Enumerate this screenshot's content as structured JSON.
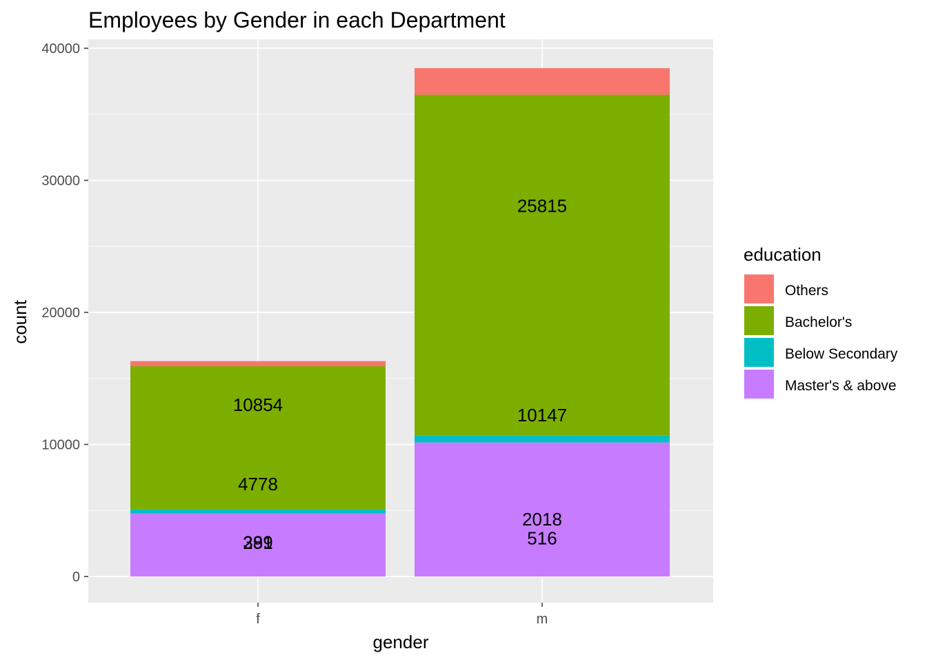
{
  "chart_data": {
    "type": "bar",
    "stacked": true,
    "title": "Employees by Gender in each Department",
    "xlabel": "gender",
    "ylabel": "count",
    "categories": [
      "f",
      "m"
    ],
    "ylim": [
      0,
      40000
    ],
    "yticks": [
      0,
      10000,
      20000,
      30000,
      40000
    ],
    "grid": true,
    "panel_background": "#ebebeb",
    "legend": {
      "title": "education",
      "position": "right",
      "entries": [
        "Others",
        "Bachelor's",
        "Below Secondary",
        "Master's & above"
      ]
    },
    "series": [
      {
        "name": "Master's & above",
        "color": "#C77CFF",
        "values": [
          4778,
          10147
        ]
      },
      {
        "name": "Below Secondary",
        "color": "#00BFC4",
        "values": [
          291,
          516
        ]
      },
      {
        "name": "Bachelor's",
        "color": "#7CAE00",
        "values": [
          10854,
          25815
        ]
      },
      {
        "name": "Others",
        "color": "#F8766D",
        "values": [
          389,
          2018
        ]
      }
    ],
    "data_labels": [
      {
        "category": "f",
        "text": "10854",
        "y": 13012
      },
      {
        "category": "f",
        "text": "4778",
        "y": 6985
      },
      {
        "category": "f",
        "text": "389",
        "y": 2597
      },
      {
        "category": "f",
        "text": "291",
        "y": 2547
      },
      {
        "category": "m",
        "text": "25815",
        "y": 28077
      },
      {
        "category": "m",
        "text": "10147",
        "y": 12218
      },
      {
        "category": "m",
        "text": "2018",
        "y": 4341
      },
      {
        "category": "m",
        "text": "516",
        "y": 2887
      }
    ]
  }
}
